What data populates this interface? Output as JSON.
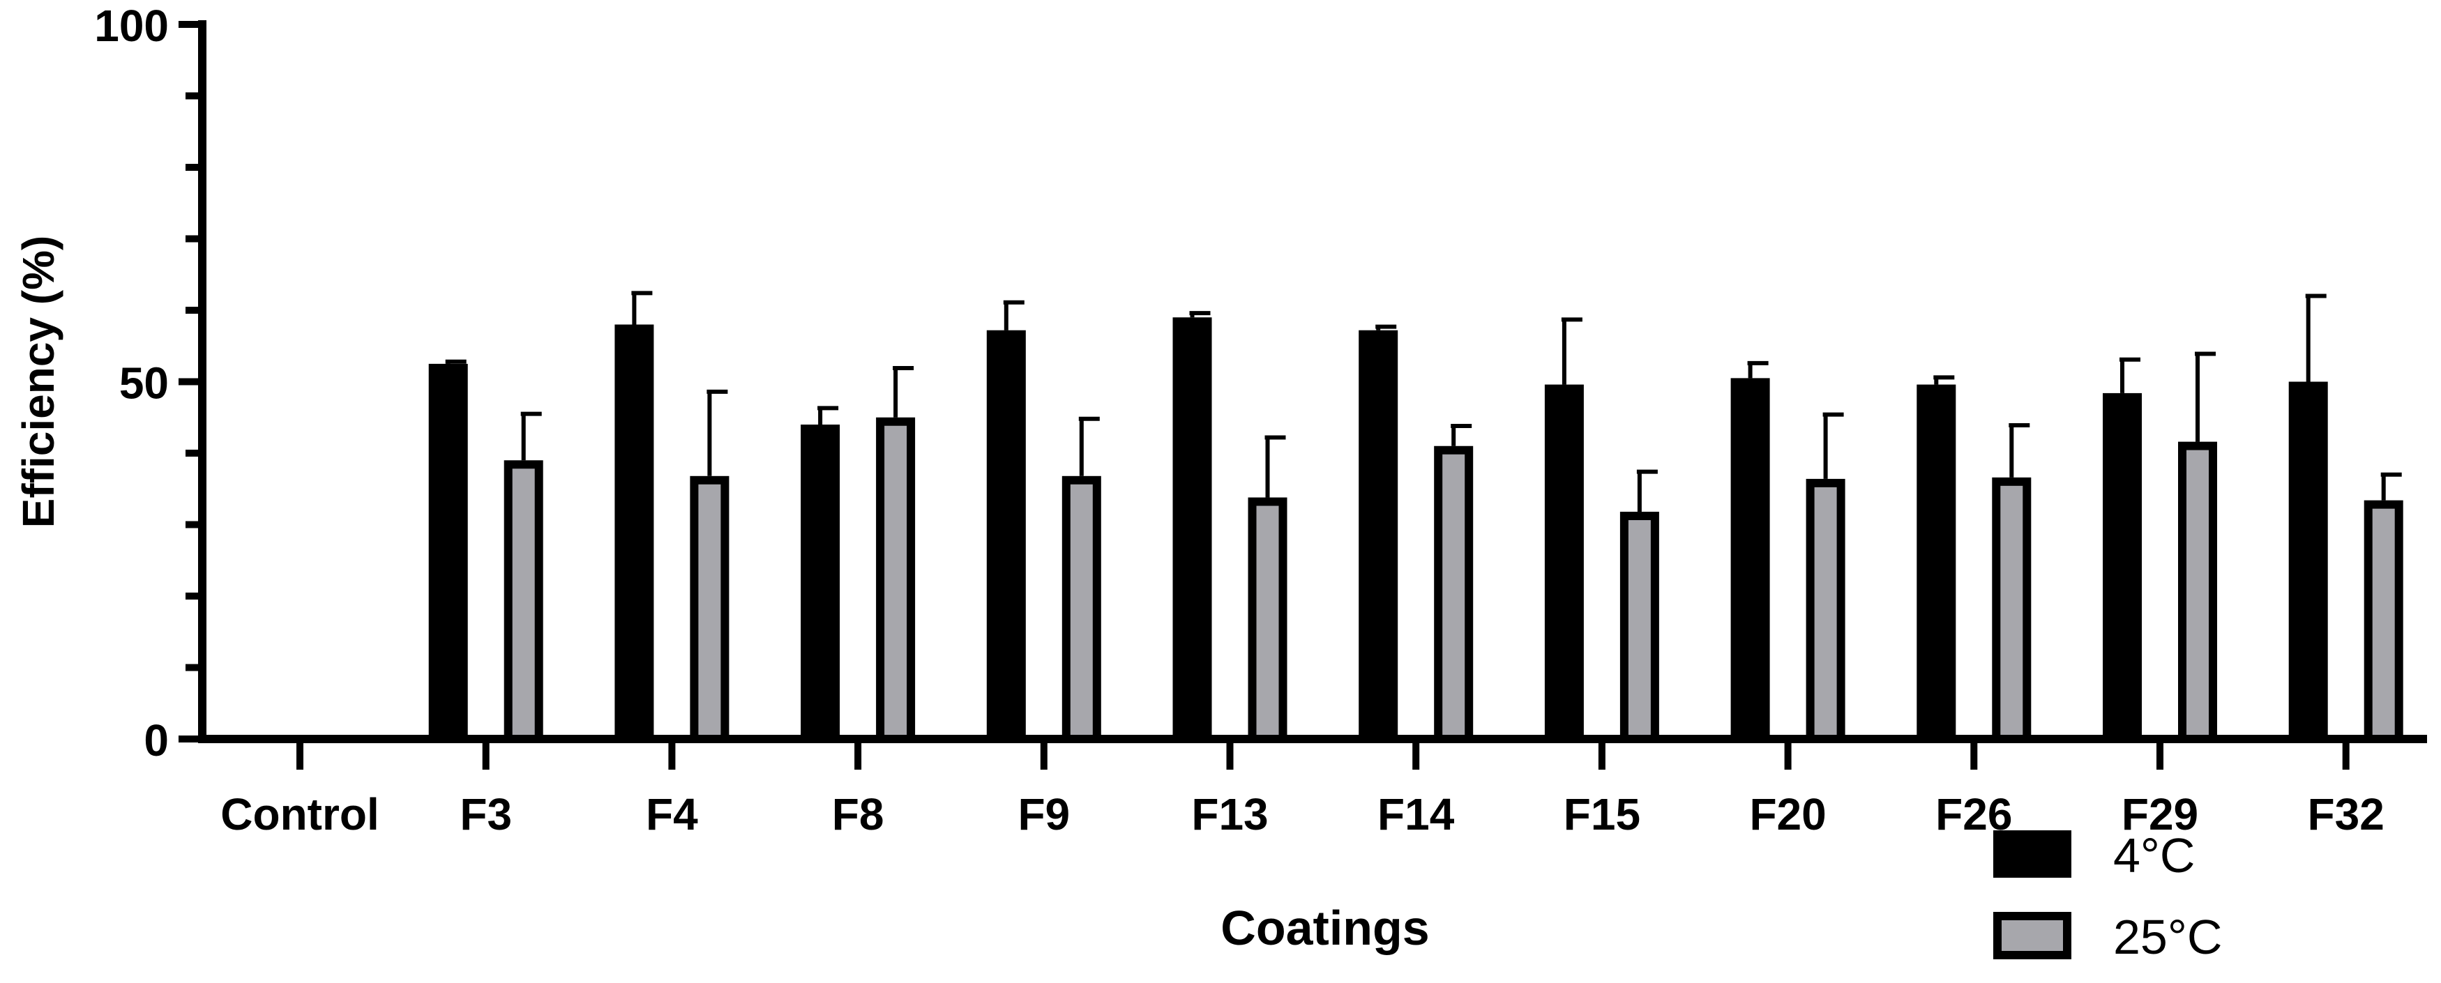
{
  "chart_data": {
    "type": "bar",
    "title": "",
    "xlabel": "Coatings",
    "ylabel": "Efficiency (%)",
    "ylim": [
      0,
      100
    ],
    "yticks": [
      0,
      50,
      100
    ],
    "grid": false,
    "legend_position": "bottom-right",
    "categories": [
      "Control",
      "F3",
      "F4",
      "F8",
      "F9",
      "F13",
      "F14",
      "F15",
      "F20",
      "F26",
      "F29",
      "F32"
    ],
    "series": [
      {
        "name": "4°C",
        "color": "#000000",
        "values": [
          0,
          52.5,
          58,
          44,
          57.2,
          59,
          57.2,
          49.6,
          50.5,
          49.6,
          48.4,
          50
        ],
        "errors": [
          0,
          0.3,
          4.4,
          2.3,
          3.9,
          0.6,
          0.5,
          9.1,
          2.1,
          1.0,
          4.7,
          12
        ]
      },
      {
        "name": "25°C",
        "color": "#a7a7ac",
        "edge_color": "#000000",
        "values": [
          0,
          39,
          36.8,
          45,
          36.8,
          33.8,
          41,
          31.8,
          36.4,
          36.6,
          41.6,
          33.4
        ],
        "errors": [
          0,
          6.5,
          11.8,
          6.9,
          8.0,
          8.4,
          2.8,
          5.6,
          9.0,
          7.3,
          12.3,
          3.6
        ]
      }
    ]
  }
}
